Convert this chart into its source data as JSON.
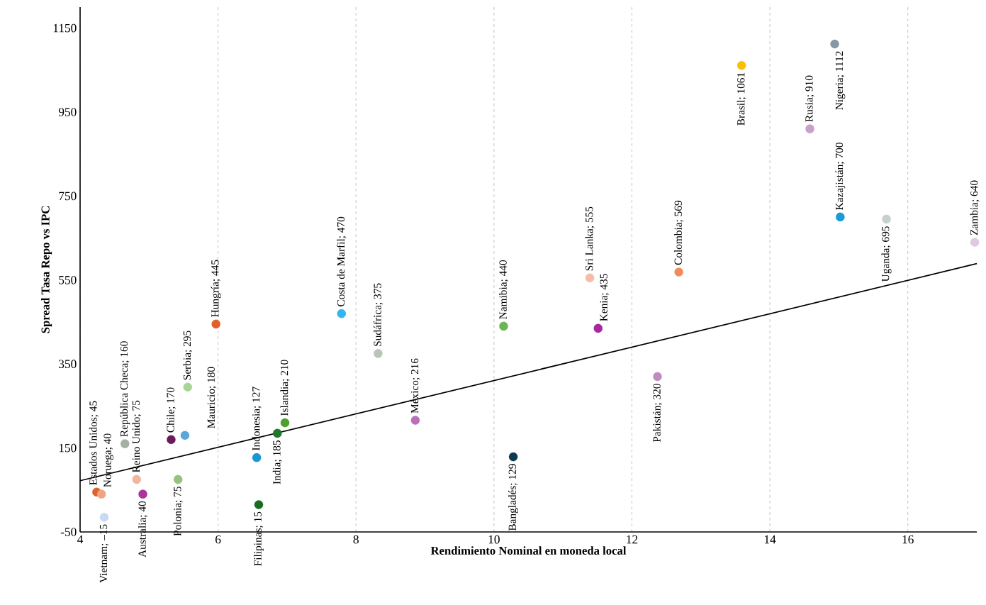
{
  "chart_data": {
    "type": "scatter",
    "xlabel": "Rendimiento Nominal en moneda local",
    "ylabel": "Spread Tasa Repo vs IPC",
    "xlim": [
      4,
      17
    ],
    "ylim": [
      -50,
      1200
    ],
    "xticks": [
      4,
      6,
      8,
      10,
      12,
      14,
      16
    ],
    "yticks": [
      -50,
      150,
      350,
      550,
      750,
      950,
      1150
    ],
    "grid": "x",
    "marker": "circle",
    "series": [
      {
        "color": "#e0622a",
        "x": [
          4.24
        ],
        "values": [
          45
        ],
        "value_labels": [
          "Estados Unidos; 45"
        ]
      },
      {
        "color": "#f0a487",
        "x": [
          4.31
        ],
        "values": [
          40
        ],
        "value_labels": [
          "Noruega; 40"
        ]
      },
      {
        "color": "#c6dbef",
        "x": [
          4.35
        ],
        "values": [
          -15
        ],
        "value_labels": [
          "Vietnam; –15"
        ]
      },
      {
        "color": "#a3b1a3",
        "x": [
          4.65
        ],
        "values": [
          160
        ],
        "value_labels": [
          "República Checa; 160"
        ]
      },
      {
        "color": "#f2b5a0",
        "x": [
          4.82
        ],
        "values": [
          75
        ],
        "value_labels": [
          "Reino Unido; 75"
        ]
      },
      {
        "color": "#a9339f",
        "x": [
          4.91
        ],
        "values": [
          40
        ],
        "value_labels": [
          "Australia; 40"
        ]
      },
      {
        "color": "#93c47d",
        "x": [
          5.42
        ],
        "values": [
          75
        ],
        "value_labels": [
          "Polonia; 75"
        ]
      },
      {
        "color": "#6a1b5a",
        "x": [
          5.32
        ],
        "values": [
          170
        ],
        "value_labels": [
          "Chile; 170"
        ]
      },
      {
        "color": "#5aa6d8",
        "x": [
          5.52
        ],
        "values": [
          180
        ],
        "value_labels": [
          "Mauricio; 180"
        ]
      },
      {
        "color": "#a8d49a",
        "x": [
          5.56
        ],
        "values": [
          295
        ],
        "value_labels": [
          "Serbia; 295"
        ]
      },
      {
        "color": "#e0622a",
        "x": [
          5.97
        ],
        "values": [
          445
        ],
        "value_labels": [
          "Hungría; 445"
        ]
      },
      {
        "color": "#1a6b23",
        "x": [
          6.59
        ],
        "values": [
          15
        ],
        "value_labels": [
          "Filipinas; 15"
        ]
      },
      {
        "color": "#1a96d0",
        "x": [
          6.56
        ],
        "values": [
          127
        ],
        "value_labels": [
          "Indonesia; 127"
        ]
      },
      {
        "color": "#1e7a28",
        "x": [
          6.86
        ],
        "values": [
          185
        ],
        "value_labels": [
          "India; 185"
        ]
      },
      {
        "color": "#4ca02c",
        "x": [
          6.97
        ],
        "values": [
          210
        ],
        "value_labels": [
          "Islandia; 210"
        ]
      },
      {
        "color": "#33b5f0",
        "x": [
          7.79
        ],
        "values": [
          470
        ],
        "value_labels": [
          "Costa de Marfil; 470"
        ]
      },
      {
        "color": "#b9c6b5",
        "x": [
          8.32
        ],
        "values": [
          375
        ],
        "value_labels": [
          "Sudáfrica; 375"
        ]
      },
      {
        "color": "#b870b8",
        "x": [
          8.86
        ],
        "values": [
          216
        ],
        "value_labels": [
          "México; 216"
        ]
      },
      {
        "color": "#6ab556",
        "x": [
          10.14
        ],
        "values": [
          440
        ],
        "value_labels": [
          "Namibia; 440"
        ]
      },
      {
        "color": "#0b3a52",
        "x": [
          10.28
        ],
        "values": [
          129
        ],
        "value_labels": [
          "Bangladés; 129"
        ]
      },
      {
        "color": "#f5bca8",
        "x": [
          11.39
        ],
        "values": [
          555
        ],
        "value_labels": [
          "Sri Lanka; 555"
        ]
      },
      {
        "color": "#a8289d",
        "x": [
          11.51
        ],
        "values": [
          435
        ],
        "value_labels": [
          "Kenia; 435"
        ]
      },
      {
        "color": "#c08cc0",
        "x": [
          12.37
        ],
        "values": [
          320
        ],
        "value_labels": [
          "Pakistán; 320"
        ]
      },
      {
        "color": "#f08b5b",
        "x": [
          12.68
        ],
        "values": [
          569
        ],
        "value_labels": [
          "Colombia; 569"
        ]
      },
      {
        "color": "#f9c000",
        "x": [
          13.59
        ],
        "values": [
          1061
        ],
        "value_labels": [
          "Brasil; 1061"
        ]
      },
      {
        "color": "#c9a0c9",
        "x": [
          14.58
        ],
        "values": [
          910
        ],
        "value_labels": [
          "Rusia; 910"
        ]
      },
      {
        "color": "#8797a6",
        "x": [
          14.94
        ],
        "values": [
          1112
        ],
        "value_labels": [
          "Nigeria; 1112"
        ]
      },
      {
        "color": "#1a9ad6",
        "x": [
          15.02
        ],
        "values": [
          700
        ],
        "value_labels": [
          "Kazajistán; 700"
        ]
      },
      {
        "color": "#c8d0cc",
        "x": [
          15.69
        ],
        "values": [
          695
        ],
        "value_labels": [
          "Uganda; 695"
        ]
      },
      {
        "color": "#e0c8e0",
        "x": [
          16.97
        ],
        "values": [
          640
        ],
        "value_labels": [
          "Zambia; 640"
        ]
      },
      {
        "type": "line",
        "color": "#000000",
        "line_style": "solid",
        "marker": "none",
        "x": [
          4,
          17
        ],
        "values": [
          72,
          589
        ]
      }
    ]
  }
}
